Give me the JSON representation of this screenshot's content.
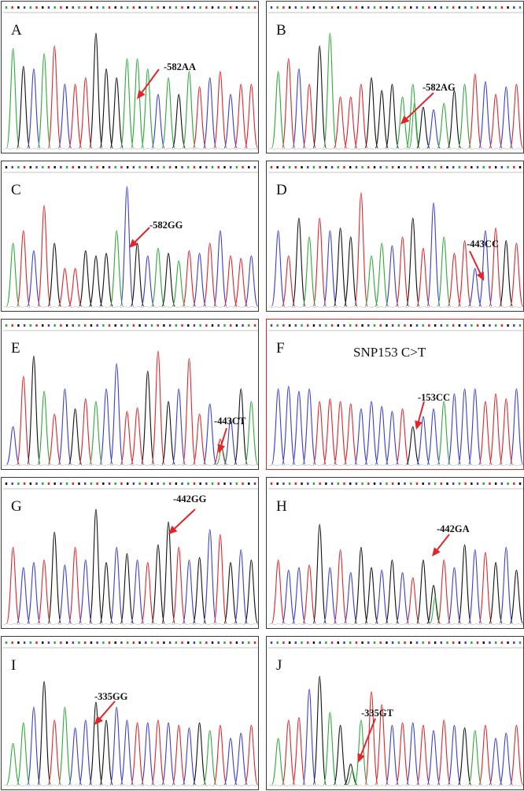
{
  "figure": {
    "panels": [
      {
        "id": "A",
        "label": "A",
        "title": "",
        "annotation": "-582AA",
        "genotype": "homozygous",
        "frame_color": "#3a3a3a",
        "peaks": [
          "A",
          "G",
          "C",
          "A",
          "T",
          "C",
          "T",
          "T",
          "G",
          "G",
          "G",
          "A",
          "A",
          "A",
          "C",
          "A",
          "G",
          "A",
          "T",
          "C",
          "T",
          "C",
          "T",
          "T"
        ]
      },
      {
        "id": "B",
        "label": "B",
        "title": "",
        "annotation": "-582AG",
        "genotype": "heterozygous",
        "frame_color": "#3a3a3a",
        "peaks": [
          "A",
          "T",
          "C",
          "T",
          "G",
          "A",
          "T",
          "T",
          "T",
          "G",
          "G",
          "G",
          "A",
          "A",
          "G",
          "C",
          "A",
          "G",
          "A",
          "T",
          "C",
          "T",
          "C",
          "T"
        ]
      },
      {
        "id": "C",
        "label": "C",
        "title": "",
        "annotation": "-582GG",
        "genotype": "homozygous",
        "frame_color": "#3a3a3a",
        "peaks": [
          "A",
          "T",
          "C",
          "T",
          "G",
          "T",
          "T",
          "G",
          "G",
          "G",
          "A",
          "C",
          "G",
          "C",
          "A",
          "G",
          "A",
          "T",
          "C",
          "T",
          "C",
          "T",
          "T",
          "C"
        ]
      },
      {
        "id": "D",
        "label": "D",
        "title": "",
        "annotation": "-443CC",
        "genotype": "homozygous",
        "frame_color": "#3a3a3a",
        "peaks": [
          "C",
          "T",
          "G",
          "A",
          "T",
          "C",
          "G",
          "G",
          "T",
          "A",
          "A",
          "C",
          "T",
          "G",
          "T",
          "C",
          "A",
          "T",
          "T",
          "C",
          "C",
          "T",
          "G",
          "T"
        ]
      },
      {
        "id": "E",
        "label": "E",
        "title": "",
        "annotation": "-443CT",
        "genotype": "heterozygous",
        "frame_color": "#3a3a3a",
        "peaks": [
          "C",
          "T",
          "G",
          "A",
          "T",
          "C",
          "G",
          "T",
          "A",
          "C",
          "C",
          "T",
          "T",
          "G",
          "T",
          "G",
          "C",
          "T",
          "T",
          "C",
          "T",
          "C",
          "G",
          "A"
        ]
      },
      {
        "id": "F",
        "label": "F",
        "title": "SNP153 C>T",
        "annotation": "-153CC",
        "genotype": "homozygous",
        "frame_color": "#d9262b",
        "peaks": [
          "C",
          "C",
          "C",
          "C",
          "T",
          "T",
          "T",
          "T",
          "C",
          "C",
          "C",
          "C",
          "T",
          "G",
          "C",
          "C",
          "A",
          "C",
          "C",
          "C",
          "T",
          "T",
          "T",
          "C"
        ]
      },
      {
        "id": "G",
        "label": "G",
        "title": "",
        "annotation": "-442GG",
        "genotype": "homozygous",
        "frame_color": "#3a3a3a",
        "peaks": [
          "T",
          "C",
          "C",
          "T",
          "G",
          "C",
          "T",
          "C",
          "G",
          "G",
          "C",
          "G",
          "C",
          "T",
          "G",
          "G",
          "T",
          "C",
          "G",
          "C",
          "T",
          "G",
          "C",
          "G"
        ]
      },
      {
        "id": "H",
        "label": "H",
        "title": "",
        "annotation": "-442GA",
        "genotype": "heterozygous",
        "frame_color": "#3a3a3a",
        "peaks": [
          "T",
          "C",
          "C",
          "T",
          "G",
          "C",
          "T",
          "C",
          "G",
          "G",
          "C",
          "G",
          "C",
          "T",
          "G",
          "G",
          "T",
          "C",
          "G",
          "C",
          "T",
          "G",
          "C",
          "G"
        ]
      },
      {
        "id": "I",
        "label": "I",
        "title": "",
        "annotation": "-335GG",
        "genotype": "homozygous",
        "frame_color": "#3a3a3a",
        "peaks": [
          "A",
          "A",
          "C",
          "G",
          "T",
          "A",
          "C",
          "C",
          "G",
          "G",
          "C",
          "C",
          "T",
          "C",
          "T",
          "C",
          "T",
          "C",
          "G",
          "A",
          "T",
          "C",
          "C",
          "T"
        ]
      },
      {
        "id": "J",
        "label": "J",
        "title": "",
        "annotation": "-335GT",
        "genotype": "heterozygous",
        "frame_color": "#3a3a3a",
        "peaks": [
          "A",
          "T",
          "T",
          "C",
          "G",
          "A",
          "G",
          "G",
          "A",
          "T",
          "T",
          "C",
          "T",
          "C",
          "T",
          "C",
          "T",
          "C",
          "G",
          "A",
          "T",
          "C",
          "C",
          "T"
        ]
      }
    ],
    "base_colors": {
      "A": "#2eaa3a",
      "C": "#3a3fd0",
      "G": "#111111",
      "T": "#e0262b"
    },
    "arrow_color": "#e0262b"
  }
}
